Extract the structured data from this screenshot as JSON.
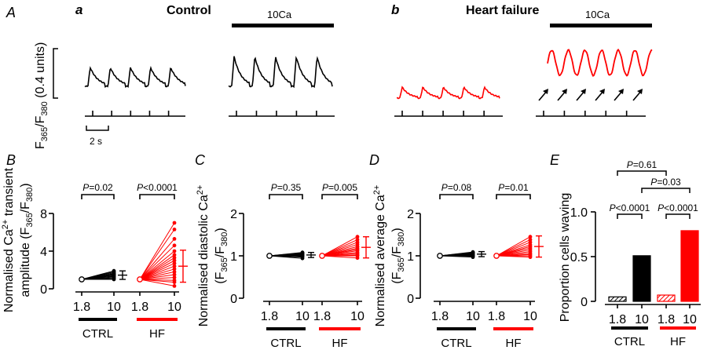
{
  "colors": {
    "ctrl": "#000000",
    "hf": "#ff0000"
  },
  "traces": {
    "panel_A_label": "A",
    "panel_a_label": "a",
    "panel_b_label": "b",
    "control_title": "Control",
    "hf_title": "Heart failure",
    "bar_10ca": "10Ca",
    "ylabel_main": "F",
    "ylabel_sub1": "365",
    "ylabel_slash": "/F",
    "ylabel_sub2": "380",
    "ylabel_units": " (0.4 units)",
    "time_scale": "2 s"
  },
  "chart_data": [
    {
      "panel": "B",
      "type": "scatter",
      "ylabel_line1": "Normalised Ca",
      "ylabel_line1_sup": "2+",
      "ylabel_line1_end": " transient",
      "ylabel_line2": "amplitude (F",
      "ylabel_line2_sub1": "365",
      "ylabel_line2_mid": "/F",
      "ylabel_line2_sub2": "380",
      "ylabel_line2_end": ")",
      "ylim": [
        0,
        8
      ],
      "yticks": [
        "0",
        "4",
        "8"
      ],
      "ytick_values": [
        0,
        4,
        8
      ],
      "xticks": [
        "1.8",
        "10",
        "1.8",
        "10"
      ],
      "groups": [
        "CTRL",
        "HF"
      ],
      "p_values": [
        {
          "prefix": "P",
          "text": "=0.02"
        },
        {
          "prefix": "P",
          "text": "<0.0001"
        }
      ],
      "series": [
        {
          "name": "CTRL",
          "baseline": 1.0,
          "values": [
            1.0,
            1.1,
            1.2,
            1.3,
            1.35,
            1.45,
            1.5,
            1.55,
            1.6,
            1.7,
            1.8,
            1.9
          ],
          "mean": 1.45,
          "err": 0.45
        },
        {
          "name": "HF",
          "baseline": 1.0,
          "values": [
            0.3,
            0.7,
            0.9,
            1.2,
            1.5,
            1.8,
            2.1,
            2.4,
            2.7,
            3.0,
            3.3,
            3.6,
            4.0,
            4.6,
            5.3,
            6.3,
            7.0
          ],
          "mean": 2.4,
          "err": 1.7
        }
      ]
    },
    {
      "panel": "C",
      "type": "scatter",
      "ylabel_line1": "Normalised diastolic Ca",
      "ylabel_line1_sup": "2+",
      "ylabel_line2": "(F",
      "ylabel_line2_sub1": "365",
      "ylabel_line2_mid": "/F",
      "ylabel_line2_sub2": "380",
      "ylabel_line2_end": ")",
      "ylim": [
        0,
        2
      ],
      "yticks": [
        "0",
        "1",
        "2"
      ],
      "ytick_values": [
        0,
        1,
        2
      ],
      "xticks": [
        "1.8",
        "10"
      ],
      "groups": [
        "CTRL",
        "HF"
      ],
      "p_values": [
        {
          "prefix": "P",
          "text": "=0.35"
        },
        {
          "prefix": "P",
          "text": "=0.005"
        }
      ],
      "series": [
        {
          "name": "CTRL",
          "baseline": 1.0,
          "values": [
            0.94,
            0.97,
            0.99,
            1.0,
            1.01,
            1.02,
            1.03,
            1.04,
            1.05,
            1.06,
            1.07,
            1.08
          ],
          "mean": 1.02,
          "err": 0.06
        },
        {
          "name": "HF",
          "baseline": 1.0,
          "values": [
            0.95,
            1.0,
            1.02,
            1.05,
            1.08,
            1.12,
            1.15,
            1.18,
            1.22,
            1.27,
            1.32,
            1.38,
            1.45
          ],
          "mean": 1.2,
          "err": 0.25
        }
      ]
    },
    {
      "panel": "D",
      "type": "scatter",
      "ylabel_line1": "Normalised average Ca",
      "ylabel_line1_sup": "2+",
      "ylabel_line2": "(F",
      "ylabel_line2_sub1": "365",
      "ylabel_line2_mid": "/F",
      "ylabel_line2_sub2": "380",
      "ylabel_line2_end": ")",
      "ylim": [
        0,
        2
      ],
      "yticks": [
        "0",
        "1",
        "2"
      ],
      "ytick_values": [
        0,
        1,
        2
      ],
      "xticks": [
        "1.8",
        "10"
      ],
      "groups": [
        "CTRL",
        "HF"
      ],
      "p_values": [
        {
          "prefix": "P",
          "text": "=0.08"
        },
        {
          "prefix": "P",
          "text": "=0.01"
        }
      ],
      "series": [
        {
          "name": "CTRL",
          "baseline": 1.0,
          "values": [
            0.97,
            0.99,
            1.0,
            1.01,
            1.02,
            1.03,
            1.04,
            1.05,
            1.06,
            1.07,
            1.08,
            1.09
          ],
          "mean": 1.04,
          "err": 0.06
        },
        {
          "name": "HF",
          "baseline": 1.0,
          "values": [
            0.97,
            1.0,
            1.03,
            1.06,
            1.1,
            1.14,
            1.18,
            1.22,
            1.26,
            1.32,
            1.38,
            1.45
          ],
          "mean": 1.22,
          "err": 0.25
        }
      ]
    },
    {
      "panel": "E",
      "type": "bar",
      "ylabel": "Proportion cells waving",
      "ylim": [
        0,
        1.0
      ],
      "yticks": [
        "0",
        "0.5",
        "1.0"
      ],
      "ytick_values": [
        0,
        0.5,
        1.0
      ],
      "categories": [
        "1.8",
        "10",
        "1.8",
        "10"
      ],
      "groups": [
        "CTRL",
        "HF"
      ],
      "values": [
        0.05,
        0.51,
        0.07,
        0.79
      ],
      "hatched": [
        true,
        false,
        true,
        false
      ],
      "colors": [
        "#000000",
        "#000000",
        "#ff0000",
        "#ff0000"
      ],
      "comparisons": [
        {
          "prefix": "P",
          "text": "=0.61",
          "from": 0,
          "to": 2
        },
        {
          "prefix": "P",
          "text": "=0.03",
          "from": 1,
          "to": 3
        },
        {
          "prefix": "P",
          "text": "<0.0001",
          "from": 0,
          "to": 1
        },
        {
          "prefix": "P",
          "text": "<0.0001",
          "from": 2,
          "to": 3
        }
      ]
    }
  ]
}
